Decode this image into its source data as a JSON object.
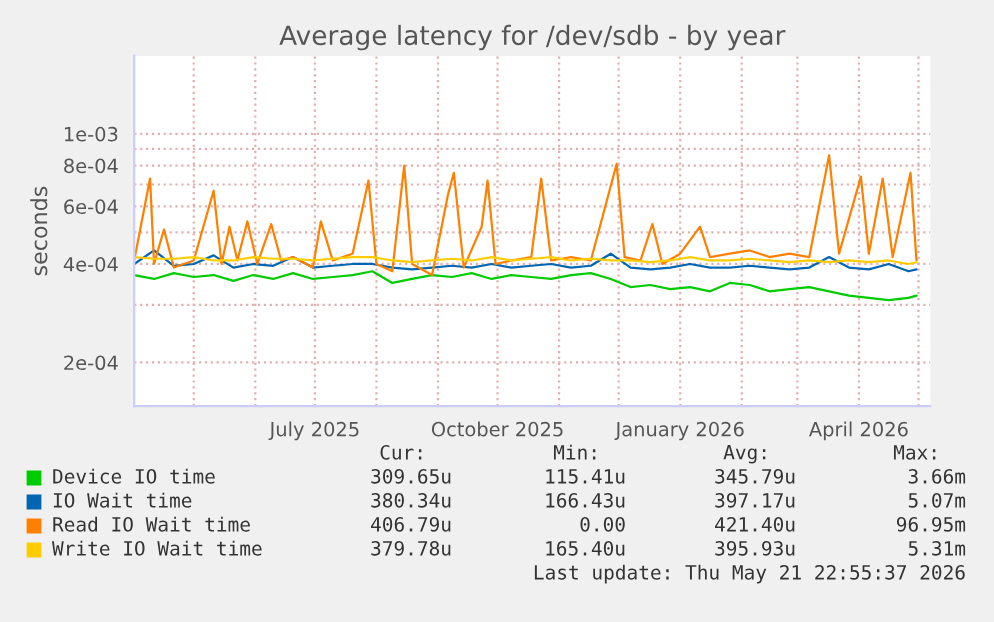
{
  "chart_data": {
    "type": "line",
    "title": "Average latency for /dev/sdb - by year",
    "ylabel": "seconds",
    "log": true,
    "grid": true,
    "legend": "bottom",
    "xlim": [
      "2025-04-01",
      "2026-05-07"
    ],
    "xticks": [
      {
        "value": "2025-05-01",
        "label": null
      },
      {
        "value": "2025-06-01",
        "label": null
      },
      {
        "value": "2025-07-01",
        "label": "July 2025"
      },
      {
        "value": "2025-08-01",
        "label": null
      },
      {
        "value": "2025-09-01",
        "label": null
      },
      {
        "value": "2025-10-01",
        "label": "October 2025"
      },
      {
        "value": "2025-11-01",
        "label": null
      },
      {
        "value": "2025-12-01",
        "label": null
      },
      {
        "value": "2026-01-01",
        "label": "January 2026"
      },
      {
        "value": "2026-02-01",
        "label": null
      },
      {
        "value": "2026-03-01",
        "label": null
      },
      {
        "value": "2026-04-01",
        "label": "April 2026"
      },
      {
        "value": "2026-05-01",
        "label": null
      }
    ],
    "ylim": [
      0.000147,
      0.00173
    ],
    "yticks": [
      {
        "value": 0.0002,
        "label": "2e-04"
      },
      {
        "value": 0.0003,
        "label": null
      },
      {
        "value": 0.0004,
        "label": "4e-04"
      },
      {
        "value": 0.0005,
        "label": null
      },
      {
        "value": 0.0006,
        "label": "6e-04"
      },
      {
        "value": 0.0007,
        "label": null
      },
      {
        "value": 0.0008,
        "label": "8e-04"
      },
      {
        "value": 0.0009,
        "label": null
      },
      {
        "value": 0.001,
        "label": "1e-03"
      }
    ],
    "x": [
      "2025-04-01",
      "2025-04-11",
      "2025-04-21",
      "2025-05-01",
      "2025-05-11",
      "2025-05-21",
      "2025-05-31",
      "2025-06-10",
      "2025-06-20",
      "2025-06-30",
      "2025-07-10",
      "2025-07-20",
      "2025-07-30",
      "2025-08-09",
      "2025-08-19",
      "2025-08-29",
      "2025-09-08",
      "2025-09-18",
      "2025-09-28",
      "2025-10-08",
      "2025-10-18",
      "2025-10-28",
      "2025-11-07",
      "2025-11-17",
      "2025-11-27",
      "2025-12-07",
      "2025-12-17",
      "2025-12-27",
      "2026-01-06",
      "2026-01-16",
      "2026-01-26",
      "2026-02-05",
      "2026-02-15",
      "2026-02-25",
      "2026-03-07",
      "2026-03-17",
      "2026-03-27",
      "2026-04-06",
      "2026-04-16",
      "2026-04-26",
      "2026-04-30"
    ],
    "series": [
      {
        "name": "Device IO time",
        "color": "#00cc00",
        "values": [
          0.00037,
          0.00036,
          0.000375,
          0.000365,
          0.00037,
          0.000355,
          0.00037,
          0.00036,
          0.000375,
          0.00036,
          0.000365,
          0.00037,
          0.00038,
          0.00035,
          0.00036,
          0.00037,
          0.000365,
          0.000375,
          0.00036,
          0.00037,
          0.000365,
          0.00036,
          0.00037,
          0.000375,
          0.00036,
          0.00034,
          0.000345,
          0.000335,
          0.00034,
          0.00033,
          0.00035,
          0.000345,
          0.00033,
          0.000335,
          0.00034,
          0.00033,
          0.00032,
          0.000315,
          0.00031,
          0.000315,
          0.00032
        ]
      },
      {
        "name": "IO Wait time",
        "color": "#0066b3",
        "values": [
          0.0004,
          0.00044,
          0.000395,
          0.0004,
          0.000425,
          0.00039,
          0.0004,
          0.000395,
          0.00042,
          0.00039,
          0.000395,
          0.0004,
          0.0004,
          0.00039,
          0.000385,
          0.00039,
          0.000395,
          0.00039,
          0.0004,
          0.00039,
          0.000395,
          0.0004,
          0.00039,
          0.000395,
          0.00043,
          0.00039,
          0.000385,
          0.00039,
          0.0004,
          0.00039,
          0.00039,
          0.000395,
          0.00039,
          0.000385,
          0.00039,
          0.00042,
          0.00039,
          0.000385,
          0.0004,
          0.00038,
          0.000385
        ]
      },
      {
        "name": "Read IO Wait time",
        "color": "#ff8000",
        "x": [
          "2025-04-01",
          "2025-04-09",
          "2025-04-11",
          "2025-04-16",
          "2025-04-21",
          "2025-05-01",
          "2025-05-11",
          "2025-05-15",
          "2025-05-19",
          "2025-05-23",
          "2025-05-28",
          "2025-06-02",
          "2025-06-09",
          "2025-06-14",
          "2025-06-20",
          "2025-06-30",
          "2025-07-04",
          "2025-07-10",
          "2025-07-20",
          "2025-07-28",
          "2025-08-01",
          "2025-08-09",
          "2025-08-15",
          "2025-08-19",
          "2025-08-29",
          "2025-09-06",
          "2025-09-09",
          "2025-09-14",
          "2025-09-23",
          "2025-09-26",
          "2025-09-30",
          "2025-10-08",
          "2025-10-18",
          "2025-10-23",
          "2025-10-28",
          "2025-11-07",
          "2025-11-17",
          "2025-11-30",
          "2025-12-04",
          "2025-12-12",
          "2025-12-18",
          "2025-12-23",
          "2026-01-01",
          "2026-01-11",
          "2026-01-16",
          "2026-01-26",
          "2026-02-05",
          "2026-02-15",
          "2026-02-25",
          "2026-03-07",
          "2026-03-17",
          "2026-03-22",
          "2026-04-02",
          "2026-04-06",
          "2026-04-13",
          "2026-04-18",
          "2026-04-27",
          "2026-04-30"
        ],
        "values": [
          0.00041,
          0.00073,
          0.0004,
          0.00051,
          0.00039,
          0.00041,
          0.00067,
          0.0004,
          0.00052,
          0.00041,
          0.00054,
          0.0004,
          0.00053,
          0.00041,
          0.00042,
          0.00039,
          0.00054,
          0.00041,
          0.00043,
          0.00072,
          0.0004,
          0.00038,
          0.0008,
          0.0004,
          0.00037,
          0.00065,
          0.00076,
          0.00039,
          0.00052,
          0.00072,
          0.0004,
          0.00041,
          0.00042,
          0.00073,
          0.00041,
          0.00042,
          0.00041,
          0.00081,
          0.00042,
          0.00041,
          0.00053,
          0.0004,
          0.00043,
          0.00052,
          0.00042,
          0.00043,
          0.00044,
          0.00042,
          0.00043,
          0.00042,
          0.00086,
          0.00043,
          0.00074,
          0.00043,
          0.00073,
          0.00042,
          0.00076,
          0.00041
        ]
      },
      {
        "name": "Write IO Wait time",
        "color": "#ffcc00",
        "values": [
          0.00042,
          0.000415,
          0.000415,
          0.00042,
          0.00041,
          0.00041,
          0.00042,
          0.000415,
          0.000415,
          0.00041,
          0.000415,
          0.00042,
          0.00042,
          0.00041,
          0.000405,
          0.00041,
          0.000415,
          0.00041,
          0.00042,
          0.00041,
          0.000415,
          0.00042,
          0.00041,
          0.000415,
          0.00041,
          0.00041,
          0.000405,
          0.00041,
          0.00042,
          0.00041,
          0.00041,
          0.000415,
          0.00041,
          0.000405,
          0.00041,
          0.000405,
          0.00041,
          0.000405,
          0.00041,
          0.0004,
          0.000405
        ]
      }
    ],
    "annotations": [
      "Cur:",
      "Min:",
      "Avg:",
      "Max:",
      "309.65u",
      "115.41u",
      "345.79u",
      "3.66m",
      "380.34u",
      "166.43u",
      "397.17u",
      "5.07m",
      "406.79u",
      "0.00",
      "421.40u",
      "96.95m",
      "379.78u",
      "165.40u",
      "395.93u",
      "5.31m",
      "Last update: Thu May 21 22:55:37 2026"
    ]
  }
}
